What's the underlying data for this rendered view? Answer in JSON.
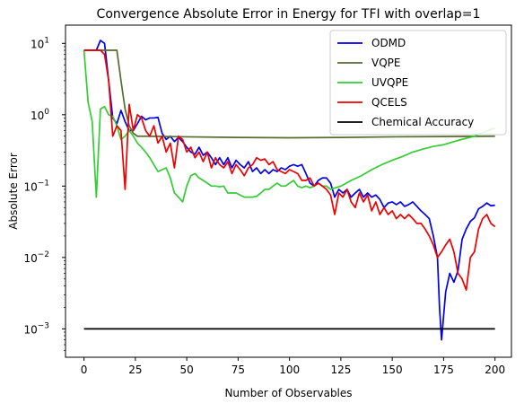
{
  "chart_data": {
    "type": "line",
    "title": "Convergence Absolute Error in Energy for TFI with overlap=1",
    "xlabel": "Number of Observables",
    "ylabel": "Absolute Error",
    "x_scale": "linear",
    "y_scale": "log",
    "xlim": [
      -9,
      208
    ],
    "ylim": [
      0.0004,
      18
    ],
    "xticks": [
      0,
      25,
      50,
      75,
      100,
      125,
      150,
      175,
      200
    ],
    "yticks": [
      {
        "value": 0.001,
        "base": "10",
        "exp": "−3"
      },
      {
        "value": 0.01,
        "base": "10",
        "exp": "−2"
      },
      {
        "value": 0.1,
        "base": "10",
        "exp": "−1"
      },
      {
        "value": 1,
        "base": "10",
        "exp": "0"
      },
      {
        "value": 10,
        "base": "10",
        "exp": "1"
      }
    ],
    "grid": false,
    "legend_position": "upper right",
    "series": [
      {
        "name": "ODMD",
        "color": "#0000ee",
        "points": [
          [
            0,
            8
          ],
          [
            6,
            8
          ],
          [
            8,
            11
          ],
          [
            10,
            10
          ],
          [
            12,
            3
          ],
          [
            14,
            0.9
          ],
          [
            16,
            0.75
          ],
          [
            18,
            1.15
          ],
          [
            20,
            0.8
          ],
          [
            22,
            0.6
          ],
          [
            24,
            0.6
          ],
          [
            26,
            0.75
          ],
          [
            28,
            0.95
          ],
          [
            30,
            0.85
          ],
          [
            32,
            0.9
          ],
          [
            34,
            0.9
          ],
          [
            36,
            0.92
          ],
          [
            38,
            0.55
          ],
          [
            40,
            0.45
          ],
          [
            42,
            0.5
          ],
          [
            44,
            0.42
          ],
          [
            46,
            0.48
          ],
          [
            48,
            0.42
          ],
          [
            50,
            0.35
          ],
          [
            52,
            0.3
          ],
          [
            54,
            0.28
          ],
          [
            56,
            0.35
          ],
          [
            58,
            0.27
          ],
          [
            60,
            0.3
          ],
          [
            62,
            0.25
          ],
          [
            64,
            0.2
          ],
          [
            66,
            0.25
          ],
          [
            68,
            0.2
          ],
          [
            70,
            0.25
          ],
          [
            72,
            0.18
          ],
          [
            74,
            0.23
          ],
          [
            76,
            0.2
          ],
          [
            78,
            0.18
          ],
          [
            80,
            0.22
          ],
          [
            82,
            0.16
          ],
          [
            84,
            0.18
          ],
          [
            86,
            0.15
          ],
          [
            88,
            0.17
          ],
          [
            90,
            0.15
          ],
          [
            92,
            0.17
          ],
          [
            94,
            0.16
          ],
          [
            96,
            0.18
          ],
          [
            98,
            0.17
          ],
          [
            100,
            0.19
          ],
          [
            102,
            0.2
          ],
          [
            104,
            0.19
          ],
          [
            106,
            0.2
          ],
          [
            108,
            0.15
          ],
          [
            110,
            0.11
          ],
          [
            112,
            0.1
          ],
          [
            114,
            0.12
          ],
          [
            116,
            0.13
          ],
          [
            118,
            0.13
          ],
          [
            120,
            0.11
          ],
          [
            122,
            0.07
          ],
          [
            124,
            0.09
          ],
          [
            126,
            0.08
          ],
          [
            128,
            0.09
          ],
          [
            130,
            0.07
          ],
          [
            132,
            0.08
          ],
          [
            134,
            0.09
          ],
          [
            136,
            0.07
          ],
          [
            138,
            0.08
          ],
          [
            140,
            0.07
          ],
          [
            142,
            0.075
          ],
          [
            144,
            0.065
          ],
          [
            146,
            0.05
          ],
          [
            148,
            0.058
          ],
          [
            150,
            0.06
          ],
          [
            152,
            0.055
          ],
          [
            154,
            0.06
          ],
          [
            156,
            0.052
          ],
          [
            158,
            0.055
          ],
          [
            160,
            0.06
          ],
          [
            162,
            0.052
          ],
          [
            164,
            0.045
          ],
          [
            166,
            0.04
          ],
          [
            168,
            0.035
          ],
          [
            170,
            0.02
          ],
          [
            172,
            0.01
          ],
          [
            173,
            0.002
          ],
          [
            174,
            0.0007
          ],
          [
            176,
            0.0033
          ],
          [
            178,
            0.006
          ],
          [
            180,
            0.0045
          ],
          [
            182,
            0.0065
          ],
          [
            184,
            0.018
          ],
          [
            186,
            0.025
          ],
          [
            188,
            0.032
          ],
          [
            190,
            0.036
          ],
          [
            192,
            0.048
          ],
          [
            194,
            0.052
          ],
          [
            196,
            0.058
          ],
          [
            198,
            0.053
          ],
          [
            200,
            0.054
          ]
        ]
      },
      {
        "name": "VQPE",
        "color": "#556b2f",
        "points": [
          [
            0,
            8
          ],
          [
            16,
            8
          ],
          [
            18,
            3
          ],
          [
            20,
            1.2
          ],
          [
            22,
            0.7
          ],
          [
            24,
            0.55
          ],
          [
            26,
            0.5
          ],
          [
            30,
            0.5
          ],
          [
            50,
            0.49
          ],
          [
            75,
            0.48
          ],
          [
            100,
            0.475
          ],
          [
            125,
            0.48
          ],
          [
            150,
            0.49
          ],
          [
            175,
            0.495
          ],
          [
            200,
            0.5
          ]
        ]
      },
      {
        "name": "UVQPE",
        "color": "#33cc33",
        "points": [
          [
            0,
            8
          ],
          [
            2,
            1.5
          ],
          [
            4,
            0.8
          ],
          [
            6,
            0.07
          ],
          [
            8,
            1.2
          ],
          [
            10,
            1.3
          ],
          [
            12,
            1.0
          ],
          [
            14,
            0.95
          ],
          [
            16,
            0.7
          ],
          [
            18,
            0.45
          ],
          [
            20,
            0.5
          ],
          [
            22,
            0.6
          ],
          [
            24,
            0.5
          ],
          [
            26,
            0.4
          ],
          [
            28,
            0.35
          ],
          [
            30,
            0.3
          ],
          [
            32,
            0.25
          ],
          [
            34,
            0.2
          ],
          [
            36,
            0.16
          ],
          [
            38,
            0.17
          ],
          [
            40,
            0.18
          ],
          [
            42,
            0.13
          ],
          [
            44,
            0.08
          ],
          [
            46,
            0.07
          ],
          [
            48,
            0.06
          ],
          [
            50,
            0.1
          ],
          [
            52,
            0.14
          ],
          [
            54,
            0.15
          ],
          [
            56,
            0.13
          ],
          [
            58,
            0.12
          ],
          [
            60,
            0.11
          ],
          [
            62,
            0.1
          ],
          [
            64,
            0.1
          ],
          [
            66,
            0.098
          ],
          [
            68,
            0.1
          ],
          [
            70,
            0.08
          ],
          [
            72,
            0.08
          ],
          [
            74,
            0.08
          ],
          [
            76,
            0.075
          ],
          [
            78,
            0.07
          ],
          [
            80,
            0.07
          ],
          [
            82,
            0.07
          ],
          [
            84,
            0.072
          ],
          [
            86,
            0.08
          ],
          [
            88,
            0.09
          ],
          [
            90,
            0.09
          ],
          [
            92,
            0.1
          ],
          [
            94,
            0.11
          ],
          [
            96,
            0.1
          ],
          [
            98,
            0.1
          ],
          [
            100,
            0.11
          ],
          [
            102,
            0.12
          ],
          [
            104,
            0.1
          ],
          [
            106,
            0.095
          ],
          [
            108,
            0.1
          ],
          [
            110,
            0.095
          ],
          [
            112,
            0.1
          ],
          [
            114,
            0.11
          ],
          [
            116,
            0.1
          ],
          [
            118,
            0.1
          ],
          [
            120,
            0.09
          ],
          [
            125,
            0.1
          ],
          [
            130,
            0.12
          ],
          [
            135,
            0.14
          ],
          [
            140,
            0.17
          ],
          [
            145,
            0.2
          ],
          [
            150,
            0.23
          ],
          [
            155,
            0.26
          ],
          [
            160,
            0.3
          ],
          [
            165,
            0.33
          ],
          [
            170,
            0.36
          ],
          [
            175,
            0.38
          ],
          [
            180,
            0.42
          ],
          [
            185,
            0.46
          ],
          [
            190,
            0.5
          ],
          [
            195,
            0.58
          ],
          [
            200,
            0.65
          ]
        ]
      },
      {
        "name": "QCELS",
        "color": "#ee0000",
        "points": [
          [
            0,
            8
          ],
          [
            8,
            8
          ],
          [
            10,
            7
          ],
          [
            12,
            3
          ],
          [
            14,
            0.5
          ],
          [
            16,
            0.7
          ],
          [
            18,
            0.6
          ],
          [
            20,
            0.09
          ],
          [
            22,
            1.4
          ],
          [
            24,
            0.6
          ],
          [
            26,
            1.0
          ],
          [
            28,
            0.9
          ],
          [
            30,
            0.6
          ],
          [
            32,
            0.5
          ],
          [
            34,
            0.7
          ],
          [
            36,
            0.4
          ],
          [
            38,
            0.5
          ],
          [
            40,
            0.3
          ],
          [
            42,
            0.4
          ],
          [
            44,
            0.18
          ],
          [
            46,
            0.5
          ],
          [
            48,
            0.45
          ],
          [
            50,
            0.3
          ],
          [
            52,
            0.35
          ],
          [
            54,
            0.25
          ],
          [
            56,
            0.3
          ],
          [
            58,
            0.22
          ],
          [
            60,
            0.3
          ],
          [
            62,
            0.18
          ],
          [
            64,
            0.25
          ],
          [
            66,
            0.2
          ],
          [
            68,
            0.18
          ],
          [
            70,
            0.22
          ],
          [
            72,
            0.15
          ],
          [
            74,
            0.2
          ],
          [
            76,
            0.17
          ],
          [
            78,
            0.14
          ],
          [
            80,
            0.18
          ],
          [
            82,
            0.2
          ],
          [
            84,
            0.25
          ],
          [
            86,
            0.23
          ],
          [
            88,
            0.24
          ],
          [
            90,
            0.2
          ],
          [
            92,
            0.22
          ],
          [
            94,
            0.17
          ],
          [
            96,
            0.16
          ],
          [
            98,
            0.15
          ],
          [
            100,
            0.17
          ],
          [
            102,
            0.16
          ],
          [
            104,
            0.15
          ],
          [
            106,
            0.12
          ],
          [
            108,
            0.12
          ],
          [
            110,
            0.13
          ],
          [
            112,
            0.1
          ],
          [
            114,
            0.11
          ],
          [
            116,
            0.1
          ],
          [
            118,
            0.09
          ],
          [
            120,
            0.075
          ],
          [
            122,
            0.04
          ],
          [
            124,
            0.08
          ],
          [
            126,
            0.07
          ],
          [
            128,
            0.09
          ],
          [
            130,
            0.06
          ],
          [
            132,
            0.05
          ],
          [
            134,
            0.08
          ],
          [
            136,
            0.06
          ],
          [
            138,
            0.075
          ],
          [
            140,
            0.045
          ],
          [
            142,
            0.06
          ],
          [
            144,
            0.04
          ],
          [
            146,
            0.05
          ],
          [
            148,
            0.04
          ],
          [
            150,
            0.045
          ],
          [
            152,
            0.035
          ],
          [
            154,
            0.04
          ],
          [
            156,
            0.035
          ],
          [
            158,
            0.04
          ],
          [
            160,
            0.035
          ],
          [
            162,
            0.03
          ],
          [
            164,
            0.03
          ],
          [
            166,
            0.025
          ],
          [
            168,
            0.02
          ],
          [
            170,
            0.015
          ],
          [
            172,
            0.01
          ],
          [
            174,
            0.012
          ],
          [
            176,
            0.015
          ],
          [
            178,
            0.018
          ],
          [
            180,
            0.012
          ],
          [
            182,
            0.006
          ],
          [
            184,
            0.005
          ],
          [
            186,
            0.0035
          ],
          [
            188,
            0.01
          ],
          [
            190,
            0.012
          ],
          [
            192,
            0.025
          ],
          [
            194,
            0.035
          ],
          [
            196,
            0.04
          ],
          [
            198,
            0.03
          ],
          [
            200,
            0.027
          ]
        ]
      },
      {
        "name": "Chemical Accuracy",
        "color": "#000000",
        "points": [
          [
            0,
            0.001
          ],
          [
            200,
            0.001
          ]
        ]
      }
    ]
  }
}
